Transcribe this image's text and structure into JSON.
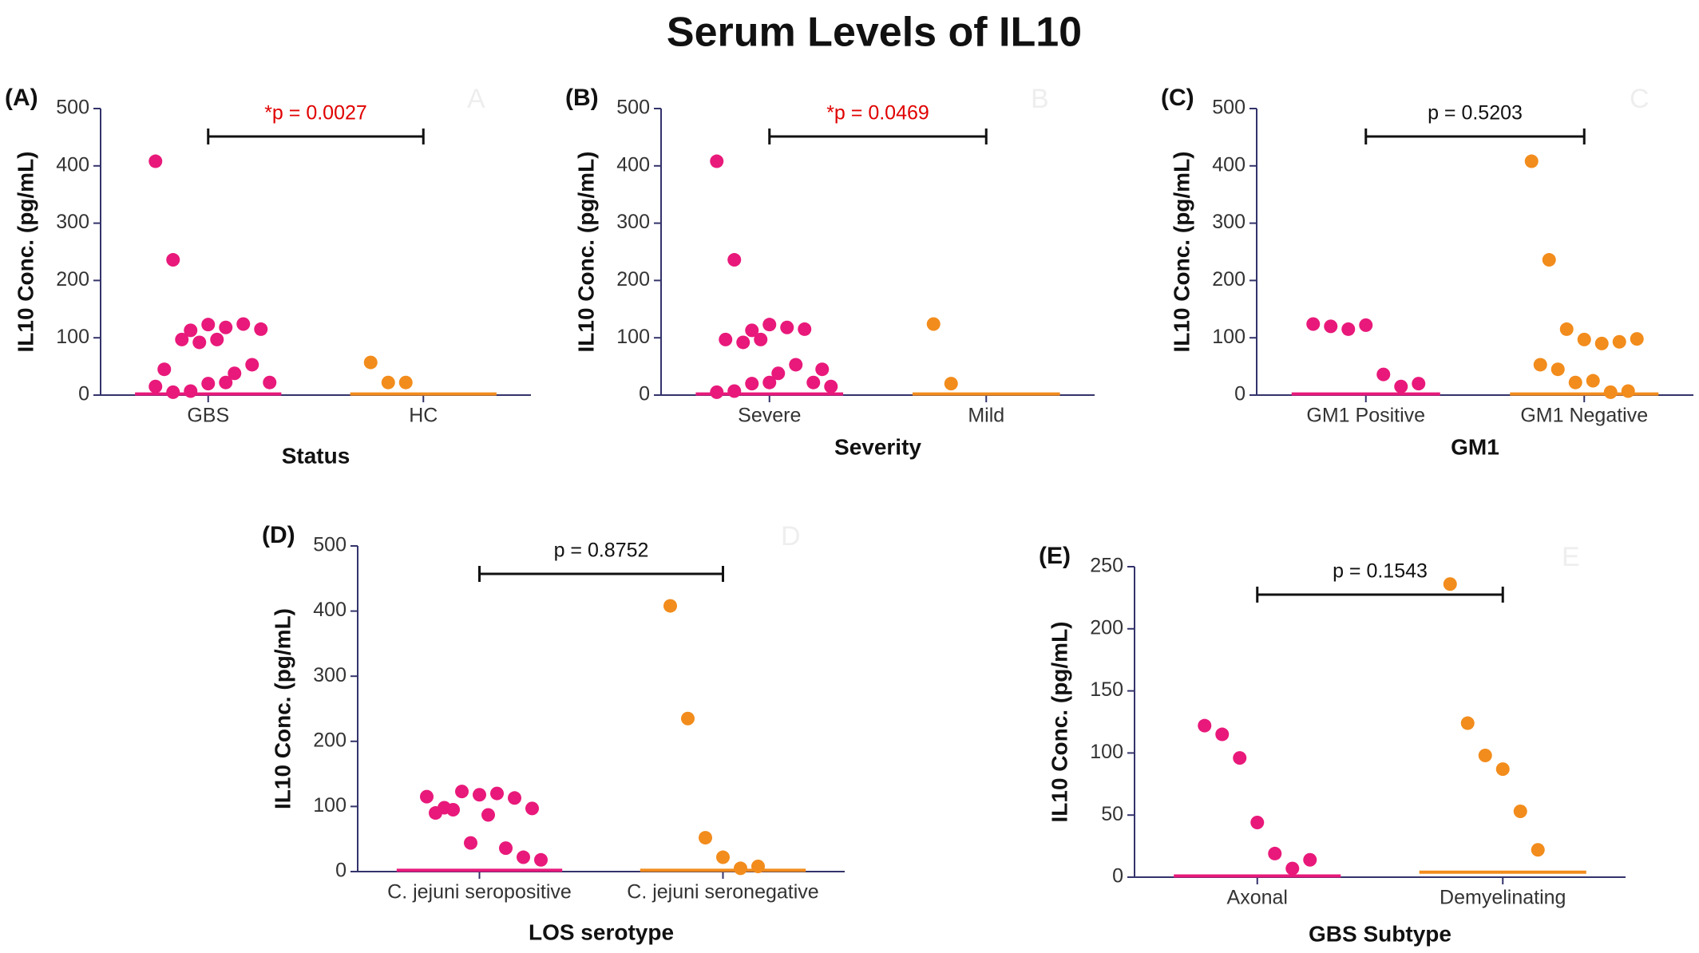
{
  "title": "Serum Levels of IL10",
  "chart_data": [
    {
      "type": "scatter",
      "panel_label": "(A)",
      "panel_mark": "A",
      "ylabel": "IL10 Conc. (pg/mL)",
      "xlabel": "Status",
      "categories": [
        "GBS",
        "HC"
      ],
      "colors": [
        "#e8197a",
        "#f28c1c"
      ],
      "groups": [
        [
          408,
          236,
          113,
          123,
          118,
          124,
          115,
          45,
          97,
          92,
          97,
          38,
          53,
          22,
          15,
          5,
          7,
          20,
          22
        ],
        [
          57,
          22,
          22
        ]
      ],
      "medians": [
        2,
        2
      ],
      "ylim": [
        0,
        500
      ],
      "yticks": [
        0,
        100,
        200,
        300,
        400,
        500
      ],
      "annotation": "*p = 0.0027",
      "annotation_color": "#e00000"
    },
    {
      "type": "scatter",
      "panel_label": "(B)",
      "panel_mark": "B",
      "ylabel": "IL10 Conc. (pg/mL)",
      "xlabel": "Severity",
      "categories": [
        "Severe",
        "Mild"
      ],
      "colors": [
        "#e8197a",
        "#f28c1c"
      ],
      "groups": [
        [
          408,
          236,
          113,
          123,
          118,
          115,
          45,
          97,
          92,
          97,
          38,
          53,
          22,
          15,
          5,
          7,
          20,
          22
        ],
        [
          124,
          20
        ]
      ],
      "medians": [
        2,
        2
      ],
      "ylim": [
        0,
        500
      ],
      "yticks": [
        0,
        100,
        200,
        300,
        400,
        500
      ],
      "annotation": "*p = 0.0469",
      "annotation_color": "#e00000"
    },
    {
      "type": "scatter",
      "panel_label": "(C)",
      "panel_mark": "C",
      "ylabel": "IL10 Conc. (pg/mL)",
      "xlabel": "GM1",
      "categories": [
        "GM1 Positive",
        "GM1 Negative"
      ],
      "colors": [
        "#e8197a",
        "#f28c1c"
      ],
      "groups": [
        [
          124,
          120,
          115,
          122,
          36,
          15,
          20
        ],
        [
          408,
          236,
          115,
          97,
          90,
          93,
          98,
          53,
          45,
          22,
          25,
          5,
          7
        ]
      ],
      "medians": [
        2,
        2
      ],
      "ylim": [
        0,
        500
      ],
      "yticks": [
        0,
        100,
        200,
        300,
        400,
        500
      ],
      "annotation": "p = 0.5203",
      "annotation_color": "#111111"
    },
    {
      "type": "scatter",
      "panel_label": "(D)",
      "panel_mark": "D",
      "ylabel": "IL10 Conc. (pg/mL)",
      "xlabel": "LOS serotype",
      "categories": [
        "C. jejuni seropositive",
        "C. jejuni seronegative"
      ],
      "colors": [
        "#e8197a",
        "#f28c1c"
      ],
      "groups": [
        [
          115,
          98,
          123,
          118,
          120,
          113,
          97,
          90,
          95,
          44,
          87,
          36,
          22,
          18
        ],
        [
          408,
          235,
          52,
          22,
          5,
          8
        ]
      ],
      "medians": [
        2,
        2
      ],
      "ylim": [
        0,
        500
      ],
      "yticks": [
        0,
        100,
        200,
        300,
        400,
        500
      ],
      "annotation": "p = 0.8752",
      "annotation_color": "#111111"
    },
    {
      "type": "scatter",
      "panel_label": "(E)",
      "panel_mark": "E",
      "ylabel": "IL10 Conc. (pg/mL)",
      "xlabel": "GBS Subtype",
      "categories": [
        "Axonal",
        "Demyelinating"
      ],
      "colors": [
        "#e8197a",
        "#f28c1c"
      ],
      "groups": [
        [
          122,
          115,
          96,
          44,
          19,
          7,
          14
        ],
        [
          236,
          124,
          98,
          87,
          53,
          22
        ]
      ],
      "medians": [
        1,
        4
      ],
      "ylim": [
        0,
        250
      ],
      "yticks": [
        0,
        50,
        100,
        150,
        200,
        250
      ],
      "annotation": "p = 0.1543",
      "annotation_color": "#111111"
    }
  ]
}
